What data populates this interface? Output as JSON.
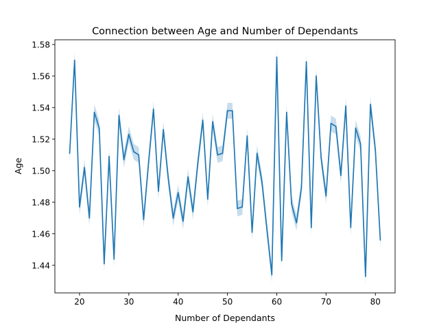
{
  "chart_data": {
    "type": "line",
    "title": "Connection between Age and Number of Dependants",
    "xlabel": "Number of Dependants",
    "ylabel": "Age",
    "xlim": [
      15,
      84
    ],
    "ylim": [
      1.4225,
      1.583
    ],
    "xticks": [
      20,
      30,
      40,
      50,
      60,
      70,
      80
    ],
    "yticks": [
      1.44,
      1.46,
      1.48,
      1.5,
      1.52,
      1.54,
      1.56,
      1.58
    ],
    "xtick_labels": [
      "20",
      "30",
      "40",
      "50",
      "60",
      "70",
      "80"
    ],
    "ytick_labels": [
      "1.44",
      "1.46",
      "1.48",
      "1.50",
      "1.52",
      "1.54",
      "1.56",
      "1.58"
    ],
    "grid": false,
    "band_halfwidth": 0.005,
    "colors": {
      "line": "#1f77b4",
      "band": "#1f77b4"
    },
    "series": [
      {
        "x": [
          18,
          19,
          20,
          21,
          22,
          23,
          24,
          25,
          26,
          27,
          28,
          29,
          30,
          31,
          32,
          33,
          34,
          35,
          36,
          37,
          38,
          39,
          40,
          41,
          42,
          43,
          44,
          45,
          46,
          47,
          48,
          49,
          50,
          51,
          52,
          53,
          54,
          55,
          56,
          57,
          58,
          59,
          60,
          61,
          62,
          63,
          64,
          65,
          66,
          67,
          68,
          69,
          70,
          71,
          72,
          73,
          74,
          75,
          76,
          77,
          78,
          79,
          80,
          81
        ],
        "y": [
          1.511,
          1.57,
          1.477,
          1.502,
          1.47,
          1.537,
          1.527,
          1.441,
          1.509,
          1.444,
          1.535,
          1.507,
          1.523,
          1.512,
          1.51,
          1.469,
          1.505,
          1.539,
          1.487,
          1.526,
          1.495,
          1.47,
          1.486,
          1.468,
          1.496,
          1.474,
          1.505,
          1.532,
          1.482,
          1.531,
          1.51,
          1.511,
          1.538,
          1.538,
          1.476,
          1.477,
          1.522,
          1.461,
          1.511,
          1.493,
          1.463,
          1.434,
          1.572,
          1.443,
          1.537,
          1.479,
          1.467,
          1.489,
          1.569,
          1.464,
          1.56,
          1.508,
          1.484,
          1.53,
          1.528,
          1.497,
          1.541,
          1.464,
          1.527,
          1.517,
          1.433,
          1.542,
          1.513,
          1.456
        ]
      }
    ]
  }
}
